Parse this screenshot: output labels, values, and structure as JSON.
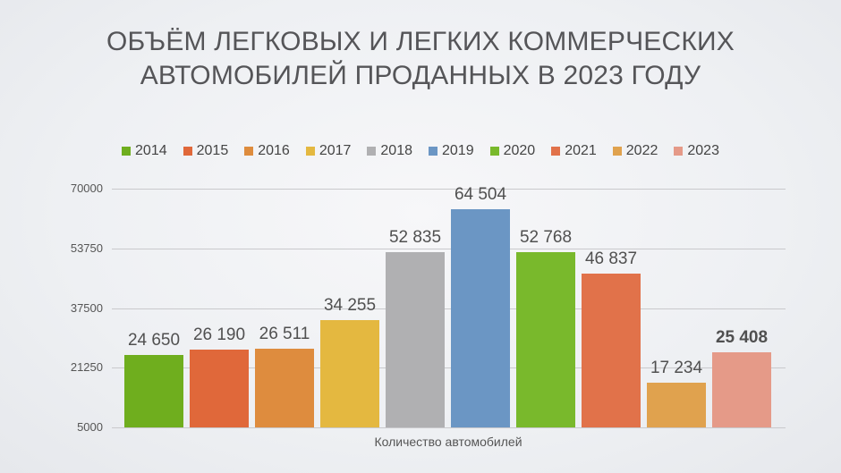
{
  "title": {
    "line1": "ОБЪЁМ ЛЕГКОВЫХ И ЛЕГКИХ КОММЕРЧЕСКИХ",
    "line2": "АВТОМОБИЛЕЙ ПРОДАННЫХ В 2023 ГОДУ"
  },
  "legend": [
    {
      "label": "2014",
      "color": "#6fae1e"
    },
    {
      "label": "2015",
      "color": "#e0683a"
    },
    {
      "label": "2016",
      "color": "#de8c3e"
    },
    {
      "label": "2017",
      "color": "#e4b840"
    },
    {
      "label": "2018",
      "color": "#b0b0b2"
    },
    {
      "label": "2019",
      "color": "#6b96c4"
    },
    {
      "label": "2020",
      "color": "#79b92c"
    },
    {
      "label": "2021",
      "color": "#e1724a"
    },
    {
      "label": "2022",
      "color": "#e0a24e"
    },
    {
      "label": "2023",
      "color": "#e59a88"
    }
  ],
  "y_ticks": [
    "70000",
    "53750",
    "37500",
    "21250",
    "5000"
  ],
  "bar_labels": [
    "24 650",
    "26 190",
    "26 511",
    "34 255",
    "52 835",
    "64 504",
    "52 768",
    "46 837",
    "17 234",
    "25 408"
  ],
  "xlabel": "Количество автомобилей",
  "chart_data": {
    "type": "bar",
    "title": "ОБЪЁМ ЛЕГКОВЫХ И ЛЕГКИХ КОММЕРЧЕСКИХ АВТОМОБИЛЕЙ ПРОДАННЫХ В 2023 ГОДУ",
    "xlabel": "Количество автомобилей",
    "ylabel": "",
    "categories": [
      "Количество автомобилей"
    ],
    "series": [
      {
        "name": "2014",
        "values": [
          24650
        ],
        "color": "#6fae1e"
      },
      {
        "name": "2015",
        "values": [
          26190
        ],
        "color": "#e0683a"
      },
      {
        "name": "2016",
        "values": [
          26511
        ],
        "color": "#de8c3e"
      },
      {
        "name": "2017",
        "values": [
          34255
        ],
        "color": "#e4b840"
      },
      {
        "name": "2018",
        "values": [
          52835
        ],
        "color": "#b0b0b2"
      },
      {
        "name": "2019",
        "values": [
          64504
        ],
        "color": "#6b96c4"
      },
      {
        "name": "2020",
        "values": [
          52768
        ],
        "color": "#79b92c"
      },
      {
        "name": "2021",
        "values": [
          46837
        ],
        "color": "#e1724a"
      },
      {
        "name": "2022",
        "values": [
          17234
        ],
        "color": "#e0a24e"
      },
      {
        "name": "2023",
        "values": [
          25408
        ],
        "color": "#e59a88"
      }
    ],
    "ylim": [
      5000,
      70000
    ],
    "yticks": [
      5000,
      21250,
      37500,
      53750,
      70000
    ],
    "grid": true,
    "legend_position": "top",
    "data_labels": true,
    "highlighted_label": "2023"
  }
}
